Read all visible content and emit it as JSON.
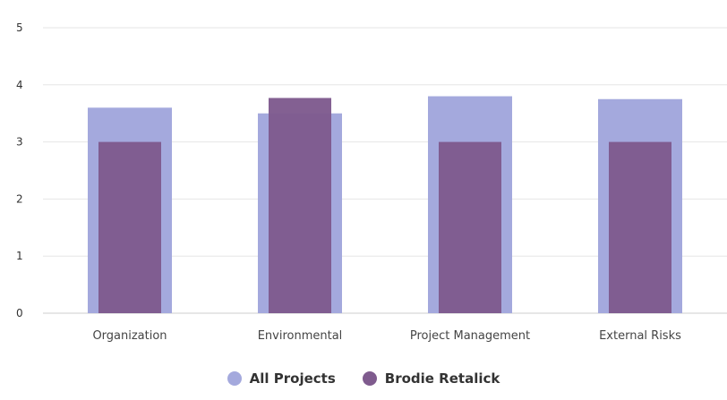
{
  "chart_data": {
    "type": "bar",
    "title": "",
    "xlabel": "",
    "ylabel": "",
    "ylim": [
      0,
      5
    ],
    "yticks": [
      0,
      1,
      2,
      3,
      4,
      5
    ],
    "categories": [
      "Organization",
      "Environmental",
      "Project Management",
      "External Risks"
    ],
    "series": [
      {
        "name": "All Projects",
        "color": "#a4a9dd",
        "values": [
          3.6,
          3.5,
          3.8,
          3.75
        ]
      },
      {
        "name": "Brodie Retalick",
        "color": "#7f5b8e",
        "values": [
          3.0,
          3.77,
          3.0,
          3.0
        ]
      }
    ],
    "grid": true,
    "legend": "bottom-center"
  }
}
